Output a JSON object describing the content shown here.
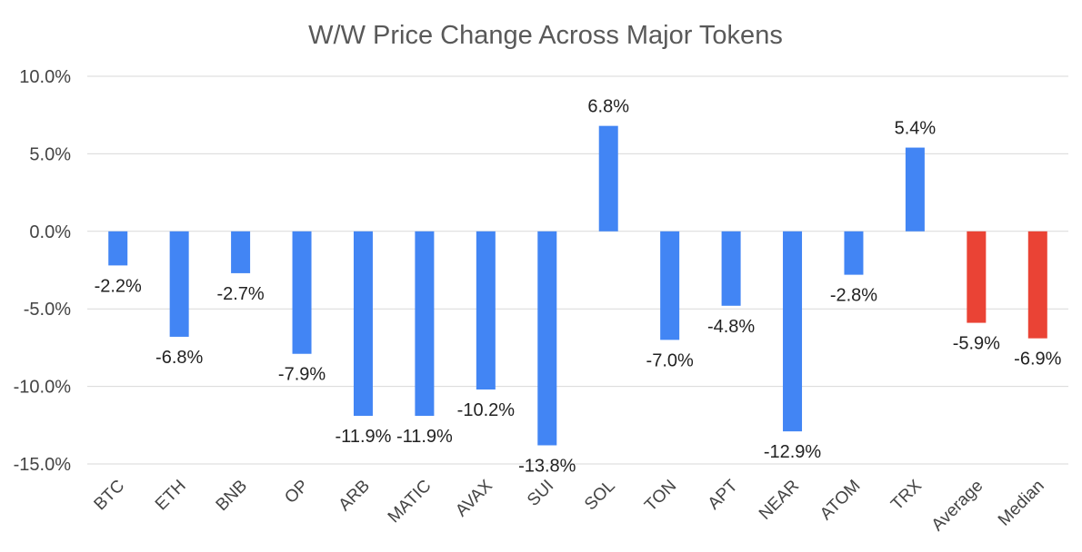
{
  "chart_data": {
    "type": "bar",
    "title": "W/W Price Change Across Major Tokens",
    "xlabel": "",
    "ylabel": "",
    "categories": [
      "BTC",
      "ETH",
      "BNB",
      "OP",
      "ARB",
      "MATIC",
      "AVAX",
      "SUI",
      "SOL",
      "TON",
      "APT",
      "NEAR",
      "ATOM",
      "TRX",
      "Average",
      "Median"
    ],
    "values": [
      -2.2,
      -6.8,
      -2.7,
      -7.9,
      -11.9,
      -11.9,
      -10.2,
      -13.8,
      6.8,
      -7.0,
      -4.8,
      -12.9,
      -2.8,
      5.4,
      -5.9,
      -6.9
    ],
    "data_labels": [
      "-2.2%",
      "-6.8%",
      "-2.7%",
      "-7.9%",
      "-11.9%",
      "-11.9%",
      "-10.2%",
      "-13.8%",
      "6.8%",
      "-7.0%",
      "-4.8%",
      "-12.9%",
      "-2.8%",
      "5.4%",
      "-5.9%",
      "-6.9%"
    ],
    "bar_colors": [
      "#4285f4",
      "#4285f4",
      "#4285f4",
      "#4285f4",
      "#4285f4",
      "#4285f4",
      "#4285f4",
      "#4285f4",
      "#4285f4",
      "#4285f4",
      "#4285f4",
      "#4285f4",
      "#4285f4",
      "#4285f4",
      "#ea4335",
      "#ea4335"
    ],
    "ylim": [
      -15,
      10
    ],
    "yticks": [
      10,
      5,
      0,
      -5,
      -10,
      -15
    ],
    "ytick_labels": [
      "10.0%",
      "5.0%",
      "0.0%",
      "-5.0%",
      "-10.0%",
      "-15.0%"
    ],
    "grid": true,
    "legend": "none"
  }
}
